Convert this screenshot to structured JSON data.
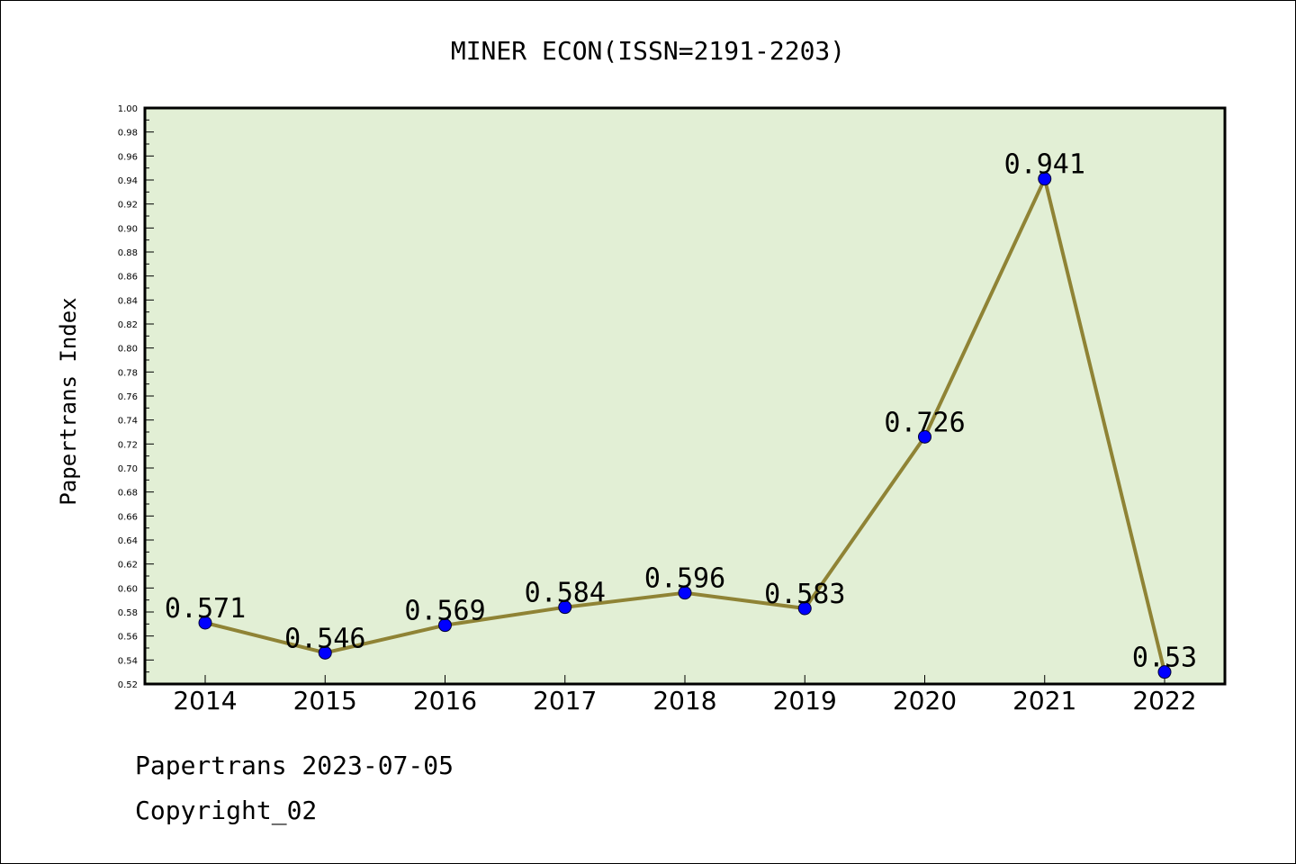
{
  "chart_data": {
    "type": "line",
    "title": "MINER ECON(ISSN=2191-2203)",
    "ylabel": "Papertrans Index",
    "xlabel": "",
    "categories": [
      "2014",
      "2015",
      "2016",
      "2017",
      "2018",
      "2019",
      "2020",
      "2021",
      "2022"
    ],
    "values": [
      0.571,
      0.546,
      0.569,
      0.584,
      0.596,
      0.583,
      0.726,
      0.941,
      0.53
    ],
    "data_labels": [
      "0.571",
      "0.546",
      "0.569",
      "0.584",
      "0.596",
      "0.583",
      "0.726",
      "0.941",
      "0.53"
    ],
    "ylim": [
      0.52,
      1.0
    ],
    "yticks": [
      "0.52",
      "0.54",
      "0.56",
      "0.58",
      "0.60",
      "0.62",
      "0.64",
      "0.66",
      "0.68",
      "0.70",
      "0.72",
      "0.74",
      "0.76",
      "0.78",
      "0.80",
      "0.82",
      "0.84",
      "0.86",
      "0.88",
      "0.90",
      "0.92",
      "0.94",
      "0.96",
      "0.98",
      "1.00"
    ],
    "grid": false,
    "colors": {
      "plot_background": "#e2efd5",
      "line": "#8f8335",
      "marker": "#0000ff"
    }
  },
  "footer": {
    "line1": "Papertrans 2023-07-05",
    "line2": "Copyright_02"
  }
}
